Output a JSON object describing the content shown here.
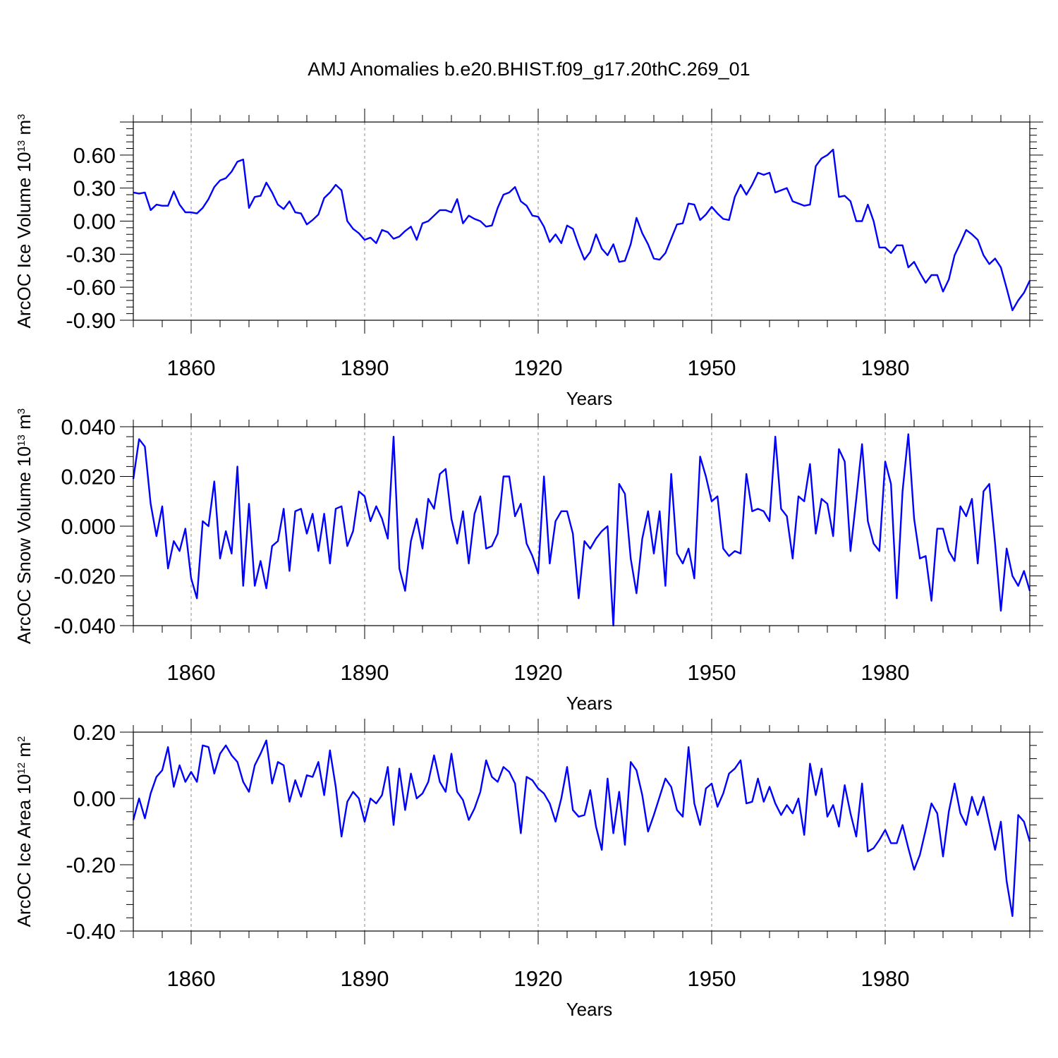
{
  "chart_data": [
    {
      "type": "line",
      "title": "AMJ Anomalies b.e20.BHIST.f09_g17.20thC.269_01",
      "xlabel": "Years",
      "ylabel": "ArcOC Ice Volume 10",
      "ylabel_sup": "13",
      "ylabel_unit": " m",
      "ylabel_unit_sup": "3",
      "xlim": [
        1850,
        2005
      ],
      "ylim": [
        -0.9,
        0.9
      ],
      "xticks": [
        1860,
        1890,
        1920,
        1950,
        1980
      ],
      "xtick_labels": [
        "1860",
        "1890",
        "1920",
        "1950",
        "1980"
      ],
      "yticks": [
        -0.9,
        -0.6,
        -0.3,
        0.0,
        0.3,
        0.6
      ],
      "ytick_labels": [
        "-0.90",
        "-0.60",
        "-0.30",
        "0.00",
        "0.30",
        "0.60"
      ],
      "grid": "vertical dashed at major x ticks",
      "series": [
        {
          "name": "ArcOC Ice Volume",
          "color": "#0000ff",
          "x_start": 1850,
          "x_step": 1,
          "values": [
            0.26,
            0.25,
            0.26,
            0.1,
            0.15,
            0.14,
            0.14,
            0.27,
            0.15,
            0.08,
            0.08,
            0.07,
            0.12,
            0.2,
            0.31,
            0.37,
            0.39,
            0.45,
            0.54,
            0.56,
            0.12,
            0.22,
            0.23,
            0.35,
            0.26,
            0.15,
            0.11,
            0.18,
            0.08,
            0.07,
            -0.03,
            0.01,
            0.06,
            0.21,
            0.26,
            0.33,
            0.28,
            0.0,
            -0.07,
            -0.11,
            -0.17,
            -0.15,
            -0.2,
            -0.08,
            -0.1,
            -0.16,
            -0.14,
            -0.09,
            -0.05,
            -0.17,
            -0.02,
            0.0,
            0.05,
            0.1,
            0.1,
            0.08,
            0.2,
            -0.02,
            0.05,
            0.02,
            0.0,
            -0.05,
            -0.04,
            0.12,
            0.24,
            0.26,
            0.31,
            0.18,
            0.14,
            0.05,
            0.04,
            -0.05,
            -0.19,
            -0.12,
            -0.2,
            -0.04,
            -0.07,
            -0.22,
            -0.35,
            -0.28,
            -0.12,
            -0.25,
            -0.31,
            -0.21,
            -0.37,
            -0.36,
            -0.21,
            0.03,
            -0.11,
            -0.21,
            -0.34,
            -0.35,
            -0.29,
            -0.16,
            -0.03,
            -0.02,
            0.16,
            0.15,
            0.01,
            0.06,
            0.13,
            0.07,
            0.02,
            0.01,
            0.22,
            0.33,
            0.24,
            0.33,
            0.44,
            0.42,
            0.44,
            0.26,
            0.28,
            0.3,
            0.18,
            0.16,
            0.14,
            0.15,
            0.5,
            0.57,
            0.6,
            0.65,
            0.22,
            0.23,
            0.18,
            0.0,
            0.0,
            0.15,
            0.0,
            -0.24,
            -0.24,
            -0.29,
            -0.22,
            -0.22,
            -0.42,
            -0.37,
            -0.47,
            -0.56,
            -0.49,
            -0.49,
            -0.64,
            -0.53,
            -0.31,
            -0.2,
            -0.08,
            -0.12,
            -0.17,
            -0.31,
            -0.39,
            -0.34,
            -0.42,
            -0.61,
            -0.81,
            -0.72,
            -0.65,
            -0.54
          ]
        }
      ]
    },
    {
      "type": "line",
      "xlabel": "Years",
      "ylabel": "ArcOC Snow Volume 10",
      "ylabel_sup": "13",
      "ylabel_unit": " m",
      "ylabel_unit_sup": "3",
      "xlim": [
        1850,
        2005
      ],
      "ylim": [
        -0.04,
        0.04
      ],
      "xticks": [
        1860,
        1890,
        1920,
        1950,
        1980
      ],
      "xtick_labels": [
        "1860",
        "1890",
        "1920",
        "1950",
        "1980"
      ],
      "yticks": [
        -0.04,
        -0.02,
        0.0,
        0.02,
        0.04
      ],
      "ytick_labels": [
        "-0.040",
        "-0.020",
        "0.000",
        "0.020",
        "0.040"
      ],
      "grid": "vertical dashed at major x ticks",
      "series": [
        {
          "name": "ArcOC Snow Volume",
          "color": "#0000ff",
          "x_start": 1850,
          "x_step": 1,
          "values": [
            0.019,
            0.035,
            0.032,
            0.009,
            -0.004,
            0.008,
            -0.017,
            -0.006,
            -0.01,
            -0.001,
            -0.021,
            -0.029,
            0.002,
            0.0,
            0.018,
            -0.013,
            -0.002,
            -0.011,
            0.024,
            -0.024,
            0.009,
            -0.024,
            -0.014,
            -0.025,
            -0.008,
            -0.006,
            0.007,
            -0.018,
            0.006,
            0.007,
            -0.003,
            0.005,
            -0.01,
            0.005,
            -0.015,
            0.007,
            0.008,
            -0.008,
            -0.002,
            0.014,
            0.012,
            0.002,
            0.008,
            0.003,
            -0.005,
            0.036,
            -0.017,
            -0.026,
            -0.006,
            0.003,
            -0.009,
            0.011,
            0.007,
            0.021,
            0.023,
            0.003,
            -0.007,
            0.006,
            -0.015,
            0.005,
            0.012,
            -0.009,
            -0.008,
            -0.003,
            0.02,
            0.02,
            0.004,
            0.009,
            -0.007,
            -0.012,
            -0.019,
            0.02,
            -0.015,
            0.002,
            0.006,
            0.006,
            -0.003,
            -0.029,
            -0.006,
            -0.009,
            -0.005,
            -0.002,
            0.0,
            -0.04,
            0.017,
            0.013,
            -0.013,
            -0.027,
            -0.005,
            0.006,
            -0.011,
            0.006,
            -0.024,
            0.021,
            -0.011,
            -0.015,
            -0.009,
            -0.021,
            0.028,
            0.02,
            0.01,
            0.012,
            -0.009,
            -0.012,
            -0.01,
            -0.011,
            0.021,
            0.006,
            0.007,
            0.006,
            0.002,
            0.036,
            0.007,
            0.004,
            -0.013,
            0.012,
            0.01,
            0.025,
            -0.003,
            0.011,
            0.009,
            -0.004,
            0.031,
            0.026,
            -0.01,
            0.011,
            0.033,
            0.002,
            -0.007,
            -0.01,
            0.026,
            0.017,
            -0.029,
            0.014,
            0.037,
            0.003,
            -0.013,
            -0.012,
            -0.03,
            -0.001,
            -0.001,
            -0.01,
            -0.014,
            0.008,
            0.004,
            0.011,
            -0.015,
            0.014,
            0.017,
            -0.007,
            -0.034,
            -0.009,
            -0.02,
            -0.024,
            -0.018,
            -0.026
          ]
        }
      ]
    },
    {
      "type": "line",
      "xlabel": "Years",
      "ylabel": "ArcOC Ice Area 10",
      "ylabel_sup": "12",
      "ylabel_unit": " m",
      "ylabel_unit_sup": "2",
      "xlim": [
        1850,
        2005
      ],
      "ylim": [
        -0.4,
        0.2
      ],
      "xticks": [
        1860,
        1890,
        1920,
        1950,
        1980
      ],
      "xtick_labels": [
        "1860",
        "1890",
        "1920",
        "1950",
        "1980"
      ],
      "yticks": [
        -0.4,
        -0.2,
        0.0,
        0.2
      ],
      "ytick_labels": [
        "-0.40",
        "-0.20",
        "0.00",
        "0.20"
      ],
      "grid": "vertical dashed at major x ticks",
      "series": [
        {
          "name": "ArcOC Ice Area",
          "color": "#0000ff",
          "x_start": 1850,
          "x_step": 1,
          "values": [
            -0.065,
            0.0,
            -0.06,
            0.015,
            0.065,
            0.085,
            0.155,
            0.035,
            0.1,
            0.05,
            0.08,
            0.05,
            0.16,
            0.155,
            0.075,
            0.135,
            0.16,
            0.13,
            0.11,
            0.05,
            0.02,
            0.1,
            0.135,
            0.175,
            0.045,
            0.11,
            0.1,
            -0.01,
            0.055,
            0.005,
            0.07,
            0.065,
            0.11,
            0.01,
            0.145,
            0.035,
            -0.115,
            -0.01,
            0.02,
            0.0,
            -0.07,
            0.0,
            -0.015,
            0.01,
            0.095,
            -0.08,
            0.09,
            -0.035,
            0.075,
            0.0,
            0.015,
            0.05,
            0.13,
            0.05,
            0.02,
            0.135,
            0.02,
            -0.005,
            -0.065,
            -0.03,
            0.02,
            0.115,
            0.065,
            0.05,
            0.095,
            0.08,
            0.045,
            -0.105,
            0.065,
            0.055,
            0.03,
            0.015,
            -0.015,
            -0.07,
            0.0,
            0.095,
            -0.035,
            -0.055,
            -0.05,
            0.025,
            -0.085,
            -0.155,
            0.06,
            -0.105,
            0.02,
            -0.14,
            0.11,
            0.085,
            0.01,
            -0.1,
            -0.05,
            0.005,
            0.06,
            0.035,
            -0.035,
            -0.055,
            0.155,
            -0.015,
            -0.08,
            0.03,
            0.045,
            -0.025,
            0.015,
            0.075,
            0.09,
            0.115,
            -0.015,
            -0.01,
            0.06,
            -0.01,
            0.035,
            -0.015,
            -0.05,
            -0.02,
            -0.045,
            0.0,
            -0.11,
            0.105,
            0.01,
            0.09,
            -0.055,
            -0.02,
            -0.085,
            0.04,
            -0.045,
            -0.115,
            0.045,
            -0.16,
            -0.15,
            -0.125,
            -0.095,
            -0.135,
            -0.135,
            -0.08,
            -0.15,
            -0.215,
            -0.17,
            -0.095,
            -0.015,
            -0.045,
            -0.175,
            -0.04,
            0.045,
            -0.045,
            -0.08,
            0.005,
            -0.05,
            0.005,
            -0.075,
            -0.155,
            -0.07,
            -0.25,
            -0.355,
            -0.05,
            -0.07,
            -0.13
          ]
        }
      ]
    }
  ]
}
